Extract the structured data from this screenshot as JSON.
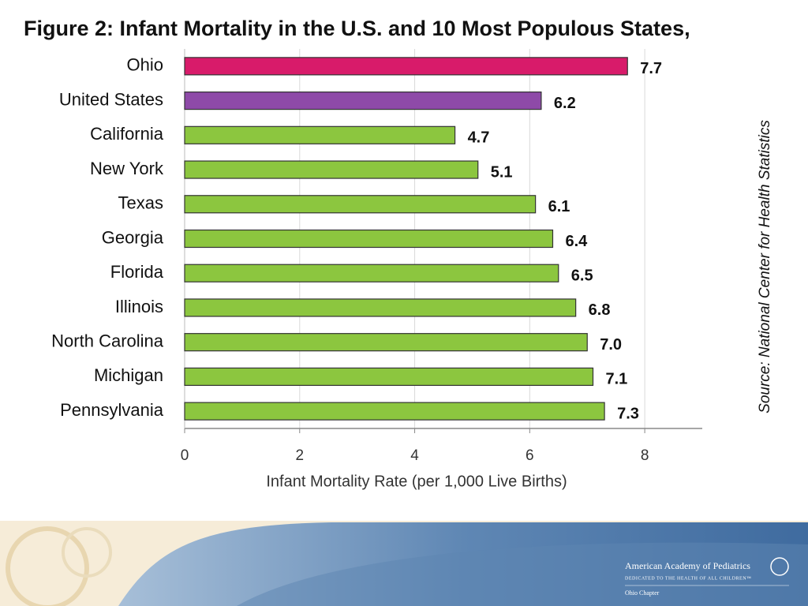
{
  "chart_data": {
    "type": "hbar",
    "title": "Figure 2: Infant Mortality in the U.S. and 10 Most Populous States,",
    "categories": [
      "Ohio",
      "United States",
      "California",
      "New York",
      "Texas",
      "Georgia",
      "Florida",
      "Illinois",
      "North Carolina",
      "Michigan",
      "Pennsylvania"
    ],
    "values": [
      7.7,
      6.2,
      4.7,
      5.1,
      6.1,
      6.4,
      6.5,
      6.8,
      7.0,
      7.1,
      7.3
    ],
    "value_labels": [
      "7.7",
      "6.2",
      "4.7",
      "5.1",
      "6.1",
      "6.4",
      "6.5",
      "6.8",
      "7.0",
      "7.1",
      "7.3"
    ],
    "colors": [
      "#d81b6a",
      "#8e4aa8",
      "#8cc63f",
      "#8cc63f",
      "#8cc63f",
      "#8cc63f",
      "#8cc63f",
      "#8cc63f",
      "#8cc63f",
      "#8cc63f",
      "#8cc63f"
    ],
    "xlim": [
      0,
      9
    ],
    "xticks": [
      0,
      2,
      4,
      6,
      8
    ],
    "grid": true,
    "xlabel": "Infant Mortality Rate (per 1,000 Live Births)",
    "source": "Source: National Center for Health Statistics"
  },
  "footer": {
    "organization": "American Academy of Pediatrics",
    "tagline": "DEDICATED TO THE HEALTH OF ALL CHILDREN™",
    "chapter": "Ohio Chapter"
  }
}
